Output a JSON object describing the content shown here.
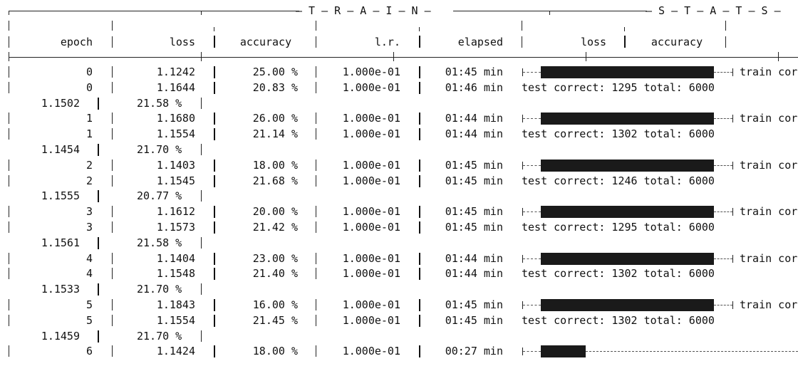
{
  "header": {
    "train_title": "— T — R — A — I — N —",
    "stats_title": "— S — T — A — T — S —",
    "columns": {
      "epoch": "epoch",
      "loss": "loss",
      "accuracy": "accuracy",
      "lr": "l.r.",
      "elapsed": "elapsed",
      "stats_loss": "loss",
      "stats_accuracy": "accuracy"
    }
  },
  "rows": [
    {
      "type": "train",
      "epoch": "0",
      "loss": "1.1242",
      "accuracy": "25.00 %",
      "lr": "1.000e-01",
      "elapsed": "01:45 min",
      "progress": 1.0,
      "tail": "train cor"
    },
    {
      "type": "test",
      "epoch": "0",
      "loss": "1.1644",
      "accuracy": "20.83 %",
      "lr": "1.000e-01",
      "elapsed": "01:46 min",
      "tail": "test correct: 1295 total: 6000"
    },
    {
      "type": "stats",
      "loss": "1.1502",
      "accuracy": "21.58 %"
    },
    {
      "type": "train",
      "epoch": "1",
      "loss": "1.1680",
      "accuracy": "26.00 %",
      "lr": "1.000e-01",
      "elapsed": "01:44 min",
      "progress": 1.0,
      "tail": "train cor"
    },
    {
      "type": "test",
      "epoch": "1",
      "loss": "1.1554",
      "accuracy": "21.14 %",
      "lr": "1.000e-01",
      "elapsed": "01:44 min",
      "tail": "test correct: 1302 total: 6000"
    },
    {
      "type": "stats",
      "loss": "1.1454",
      "accuracy": "21.70 %"
    },
    {
      "type": "train",
      "epoch": "2",
      "loss": "1.1403",
      "accuracy": "18.00 %",
      "lr": "1.000e-01",
      "elapsed": "01:45 min",
      "progress": 1.0,
      "tail": "train cor"
    },
    {
      "type": "test",
      "epoch": "2",
      "loss": "1.1545",
      "accuracy": "21.68 %",
      "lr": "1.000e-01",
      "elapsed": "01:45 min",
      "tail": "test correct: 1246 total: 6000"
    },
    {
      "type": "stats",
      "loss": "1.1555",
      "accuracy": "20.77 %"
    },
    {
      "type": "train",
      "epoch": "3",
      "loss": "1.1612",
      "accuracy": "20.00 %",
      "lr": "1.000e-01",
      "elapsed": "01:45 min",
      "progress": 1.0,
      "tail": "train cor"
    },
    {
      "type": "test",
      "epoch": "3",
      "loss": "1.1573",
      "accuracy": "21.42 %",
      "lr": "1.000e-01",
      "elapsed": "01:45 min",
      "tail": "test correct: 1295 total: 6000"
    },
    {
      "type": "stats",
      "loss": "1.1561",
      "accuracy": "21.58 %"
    },
    {
      "type": "train",
      "epoch": "4",
      "loss": "1.1404",
      "accuracy": "23.00 %",
      "lr": "1.000e-01",
      "elapsed": "01:44 min",
      "progress": 1.0,
      "tail": "train cor"
    },
    {
      "type": "test",
      "epoch": "4",
      "loss": "1.1548",
      "accuracy": "21.40 %",
      "lr": "1.000e-01",
      "elapsed": "01:44 min",
      "tail": "test correct: 1302 total: 6000"
    },
    {
      "type": "stats",
      "loss": "1.1533",
      "accuracy": "21.70 %"
    },
    {
      "type": "train",
      "epoch": "5",
      "loss": "1.1843",
      "accuracy": "16.00 %",
      "lr": "1.000e-01",
      "elapsed": "01:45 min",
      "progress": 1.0,
      "tail": "train cor"
    },
    {
      "type": "test",
      "epoch": "5",
      "loss": "1.1554",
      "accuracy": "21.45 %",
      "lr": "1.000e-01",
      "elapsed": "01:45 min",
      "tail": "test correct: 1302 total: 6000"
    },
    {
      "type": "stats",
      "loss": "1.1459",
      "accuracy": "21.70 %"
    },
    {
      "type": "train",
      "epoch": "6",
      "loss": "1.1424",
      "accuracy": "18.00 %",
      "lr": "1.000e-01",
      "elapsed": "00:27 min",
      "progress": 0.26,
      "tail": ""
    }
  ]
}
